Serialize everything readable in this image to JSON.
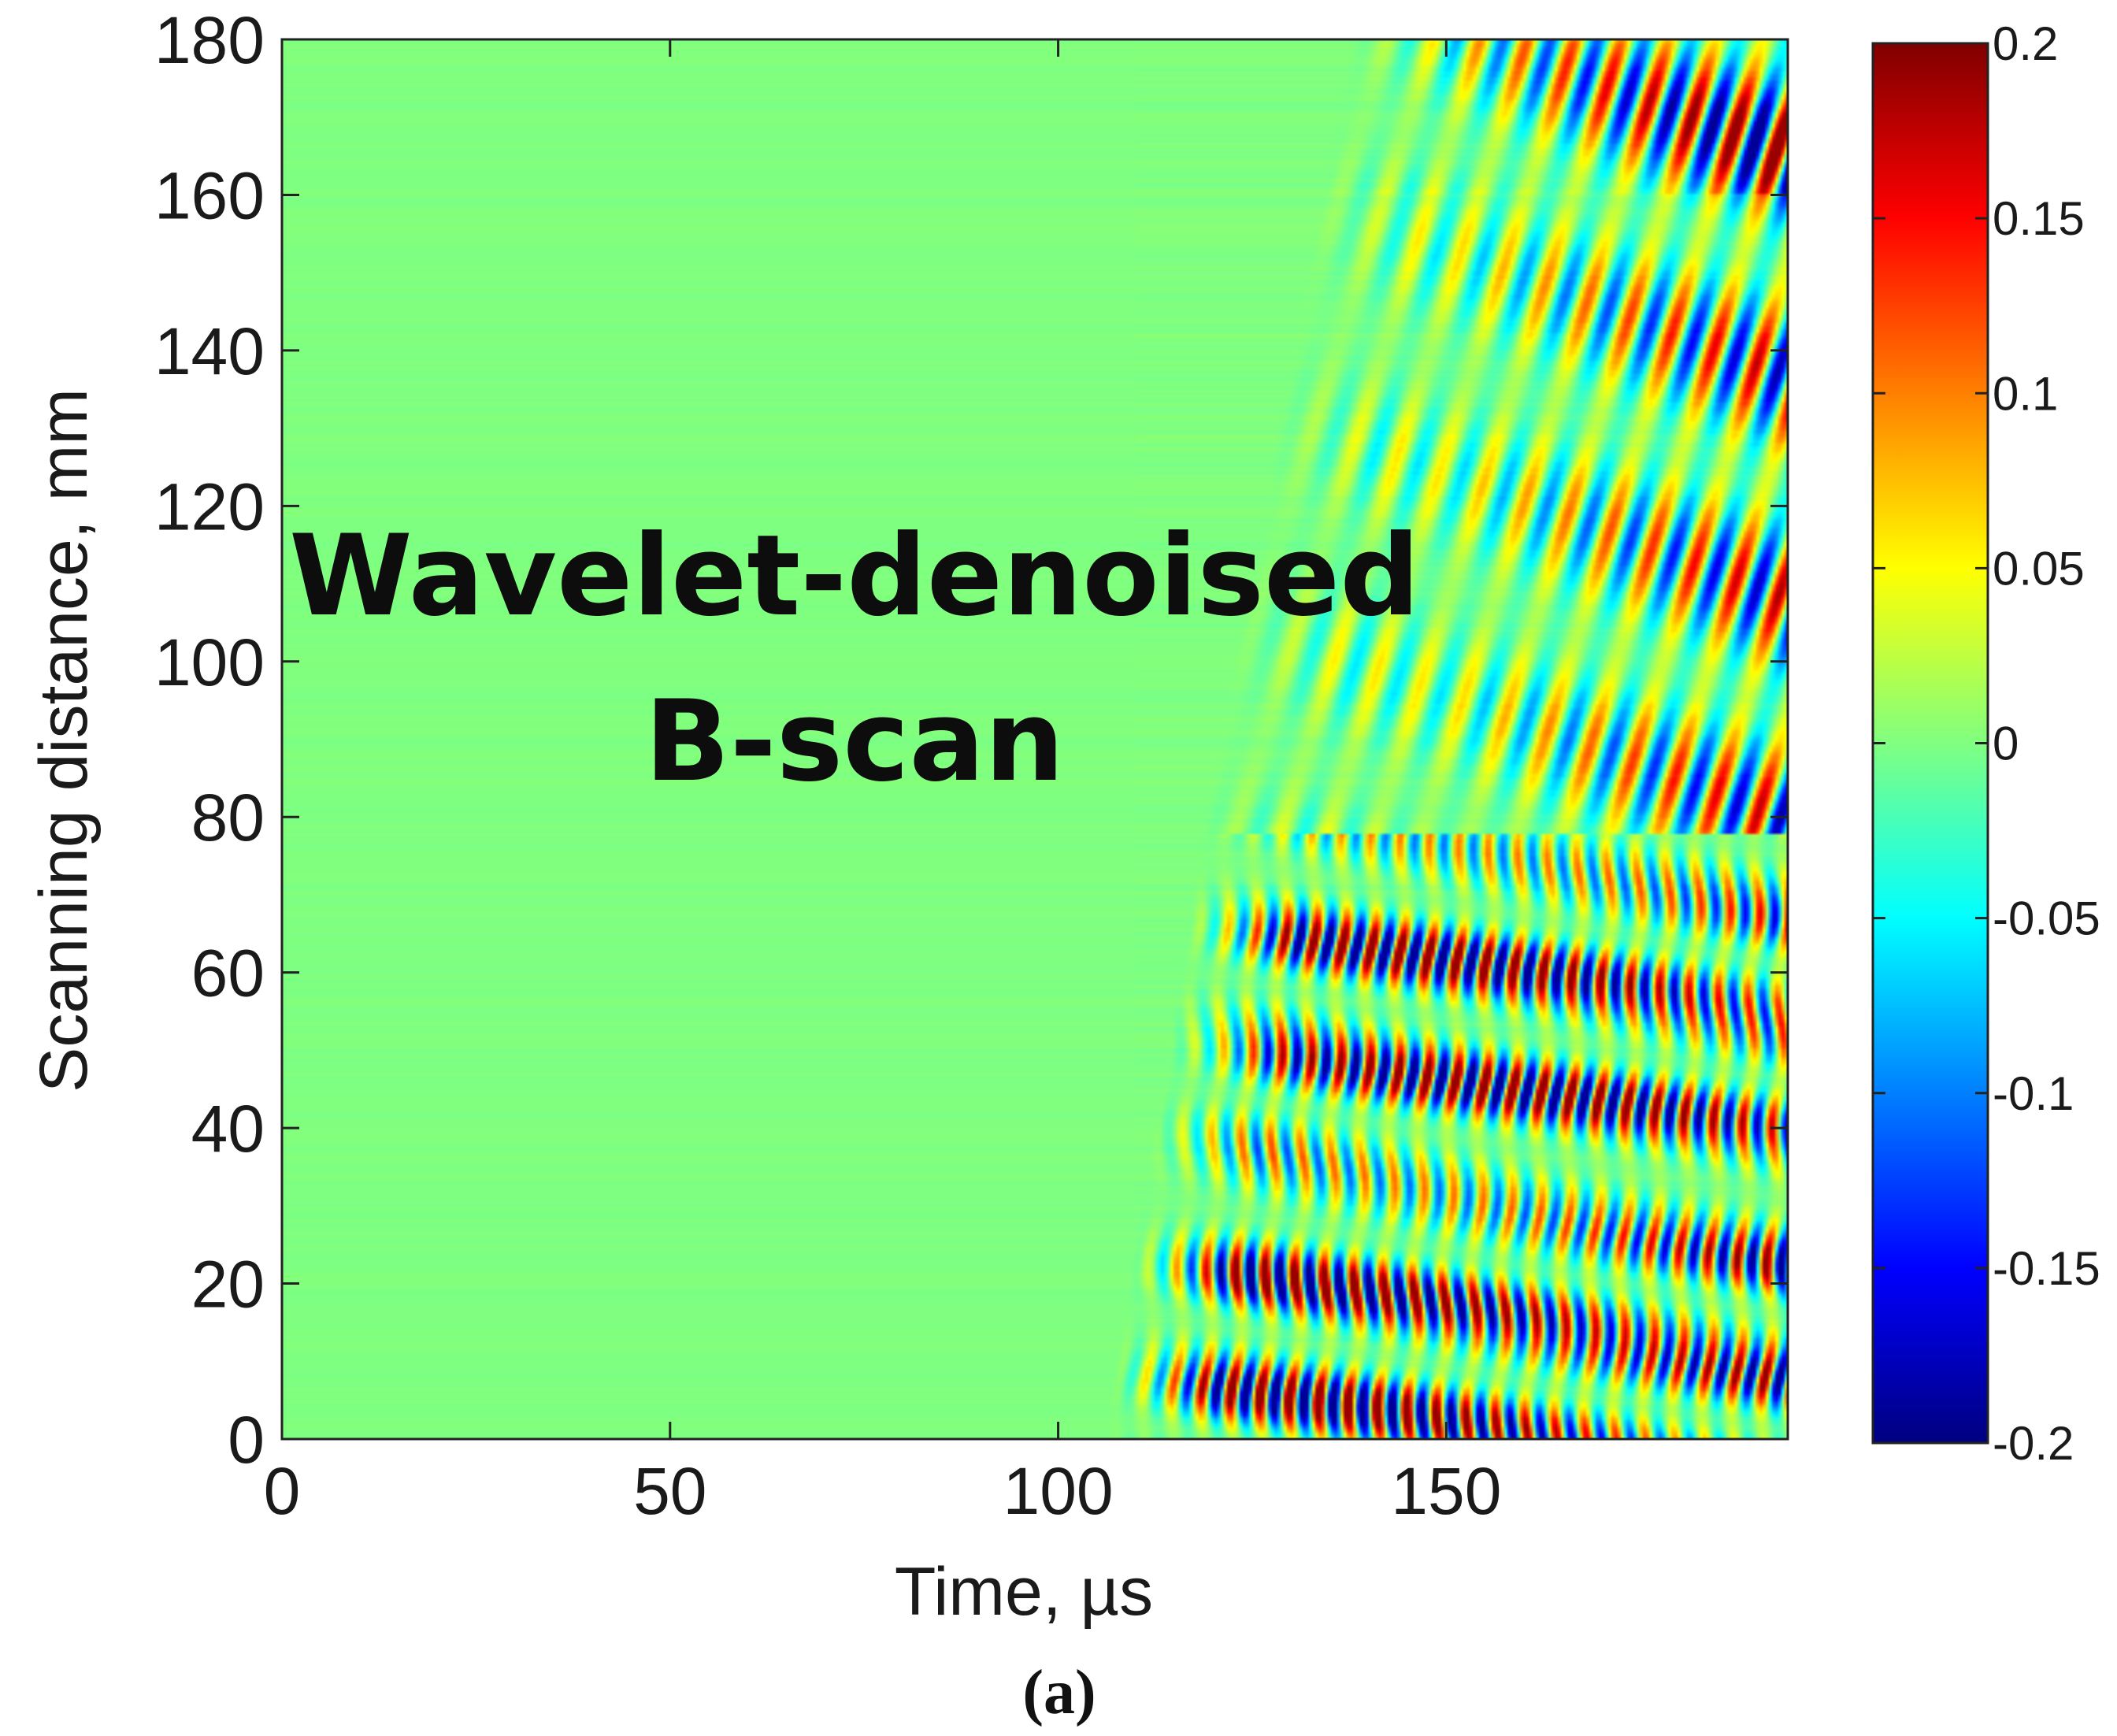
{
  "chart_data": {
    "type": "heatmap",
    "title": "",
    "overlay_text": [
      "Wavelet-denoised",
      "B-scan"
    ],
    "xlabel": "Time, µs",
    "ylabel": "Scanning distance, mm",
    "xlim": [
      0,
      194
    ],
    "ylim": [
      0,
      180
    ],
    "x_ticks": [
      0,
      50,
      100,
      150
    ],
    "y_ticks": [
      0,
      20,
      40,
      60,
      80,
      100,
      120,
      140,
      160,
      180
    ],
    "grid": false,
    "colormap": "jet",
    "colorbar": {
      "range": [
        -0.2,
        0.2
      ],
      "ticks": [
        0.2,
        0.15,
        0.1,
        0.05,
        0,
        -0.05,
        -0.1,
        -0.15,
        -0.2
      ],
      "tick_labels": [
        "0.2",
        "0.15",
        "0.1",
        "0.05",
        "0",
        "-0.05",
        "-0.1",
        "-0.15",
        "-0.2"
      ]
    },
    "field_description": {
      "quiet_region": {
        "x_range": [
          0,
          110
        ],
        "value": 0
      },
      "reflection_arrival_us": {
        "at_0mm": 112,
        "at_80mm": 125,
        "at_160mm": 140
      },
      "strong_band_mm": [
        0,
        78
      ],
      "strong_rows_mm": [
        5,
        20,
        45,
        62
      ],
      "oscillation_period_us": 3.8,
      "diagonal_wave_slope_mm_per_us": 3.2
    }
  },
  "caption": "(a)"
}
